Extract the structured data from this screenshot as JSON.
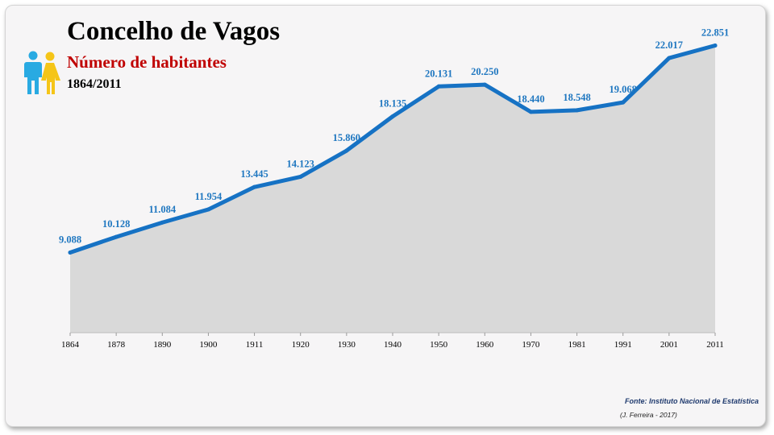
{
  "header": {
    "title": "Concelho de Vagos",
    "subtitle": "Número de habitantes",
    "period": "1864/2011",
    "icon": "male-female-people-icon"
  },
  "footer": {
    "source": "Fonte: Instituto Nacional de Estatística",
    "credit": "(J. Ferreira - 2017)"
  },
  "colors": {
    "line": "#1672c4",
    "area": "#d9d9d9",
    "labels": "#1f77c0",
    "title": "#000000",
    "subtitle": "#c00000",
    "male_icon": "#29aae2",
    "female_icon": "#f5c518"
  },
  "chart_data": {
    "type": "area",
    "categories": [
      "1864",
      "1878",
      "1890",
      "1900",
      "1911",
      "1920",
      "1930",
      "1940",
      "1950",
      "1960",
      "1970",
      "1981",
      "1991",
      "2001",
      "2011"
    ],
    "values": [
      9088,
      10128,
      11084,
      11954,
      13445,
      14123,
      15860,
      18135,
      20131,
      20250,
      18440,
      18548,
      19068,
      22017,
      22851
    ],
    "value_labels": [
      "9.088",
      "10.128",
      "11.084",
      "11.954",
      "13.445",
      "14.123",
      "15.860",
      "18.135",
      "20.131",
      "20.250",
      "18.440",
      "18.548",
      "19.068",
      "22.017",
      "22.851"
    ],
    "title": "Concelho de Vagos",
    "subtitle": "Número de habitantes",
    "xlabel": "",
    "ylabel": "",
    "ylim": [
      0,
      24000
    ],
    "grid": false,
    "legend": "none"
  }
}
